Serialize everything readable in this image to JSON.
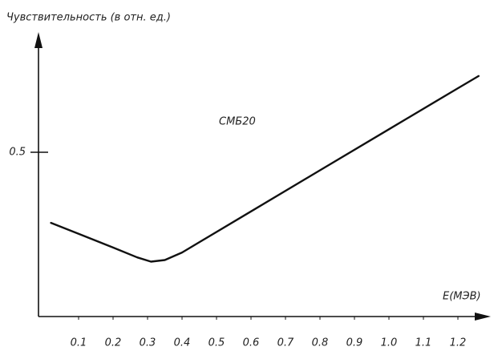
{
  "chart_data": {
    "type": "line",
    "title": "Чувствительность (в отн. ед.)",
    "x_label": "E(МЭВ)",
    "annotation": "СМБ20",
    "x": [
      0.02,
      0.1,
      0.2,
      0.27,
      0.31,
      0.35,
      0.4,
      0.6,
      0.8,
      1.0,
      1.2,
      1.26
    ],
    "series": [
      {
        "name": "СМБ20",
        "color": "#111111",
        "values": [
          0.285,
          0.252,
          0.21,
          0.18,
          0.167,
          0.172,
          0.195,
          0.32,
          0.445,
          0.57,
          0.695,
          0.732
        ]
      }
    ],
    "xlim": [
      0,
      1.3
    ],
    "ylim": [
      0,
      0.85
    ],
    "xticks": [
      0.1,
      0.2,
      0.3,
      0.4,
      0.5,
      0.6,
      0.7,
      0.8,
      0.9,
      {
        "value": 1,
        "label": "1.0"
      },
      1.1,
      1.2
    ],
    "yticks": [
      0.5
    ]
  }
}
